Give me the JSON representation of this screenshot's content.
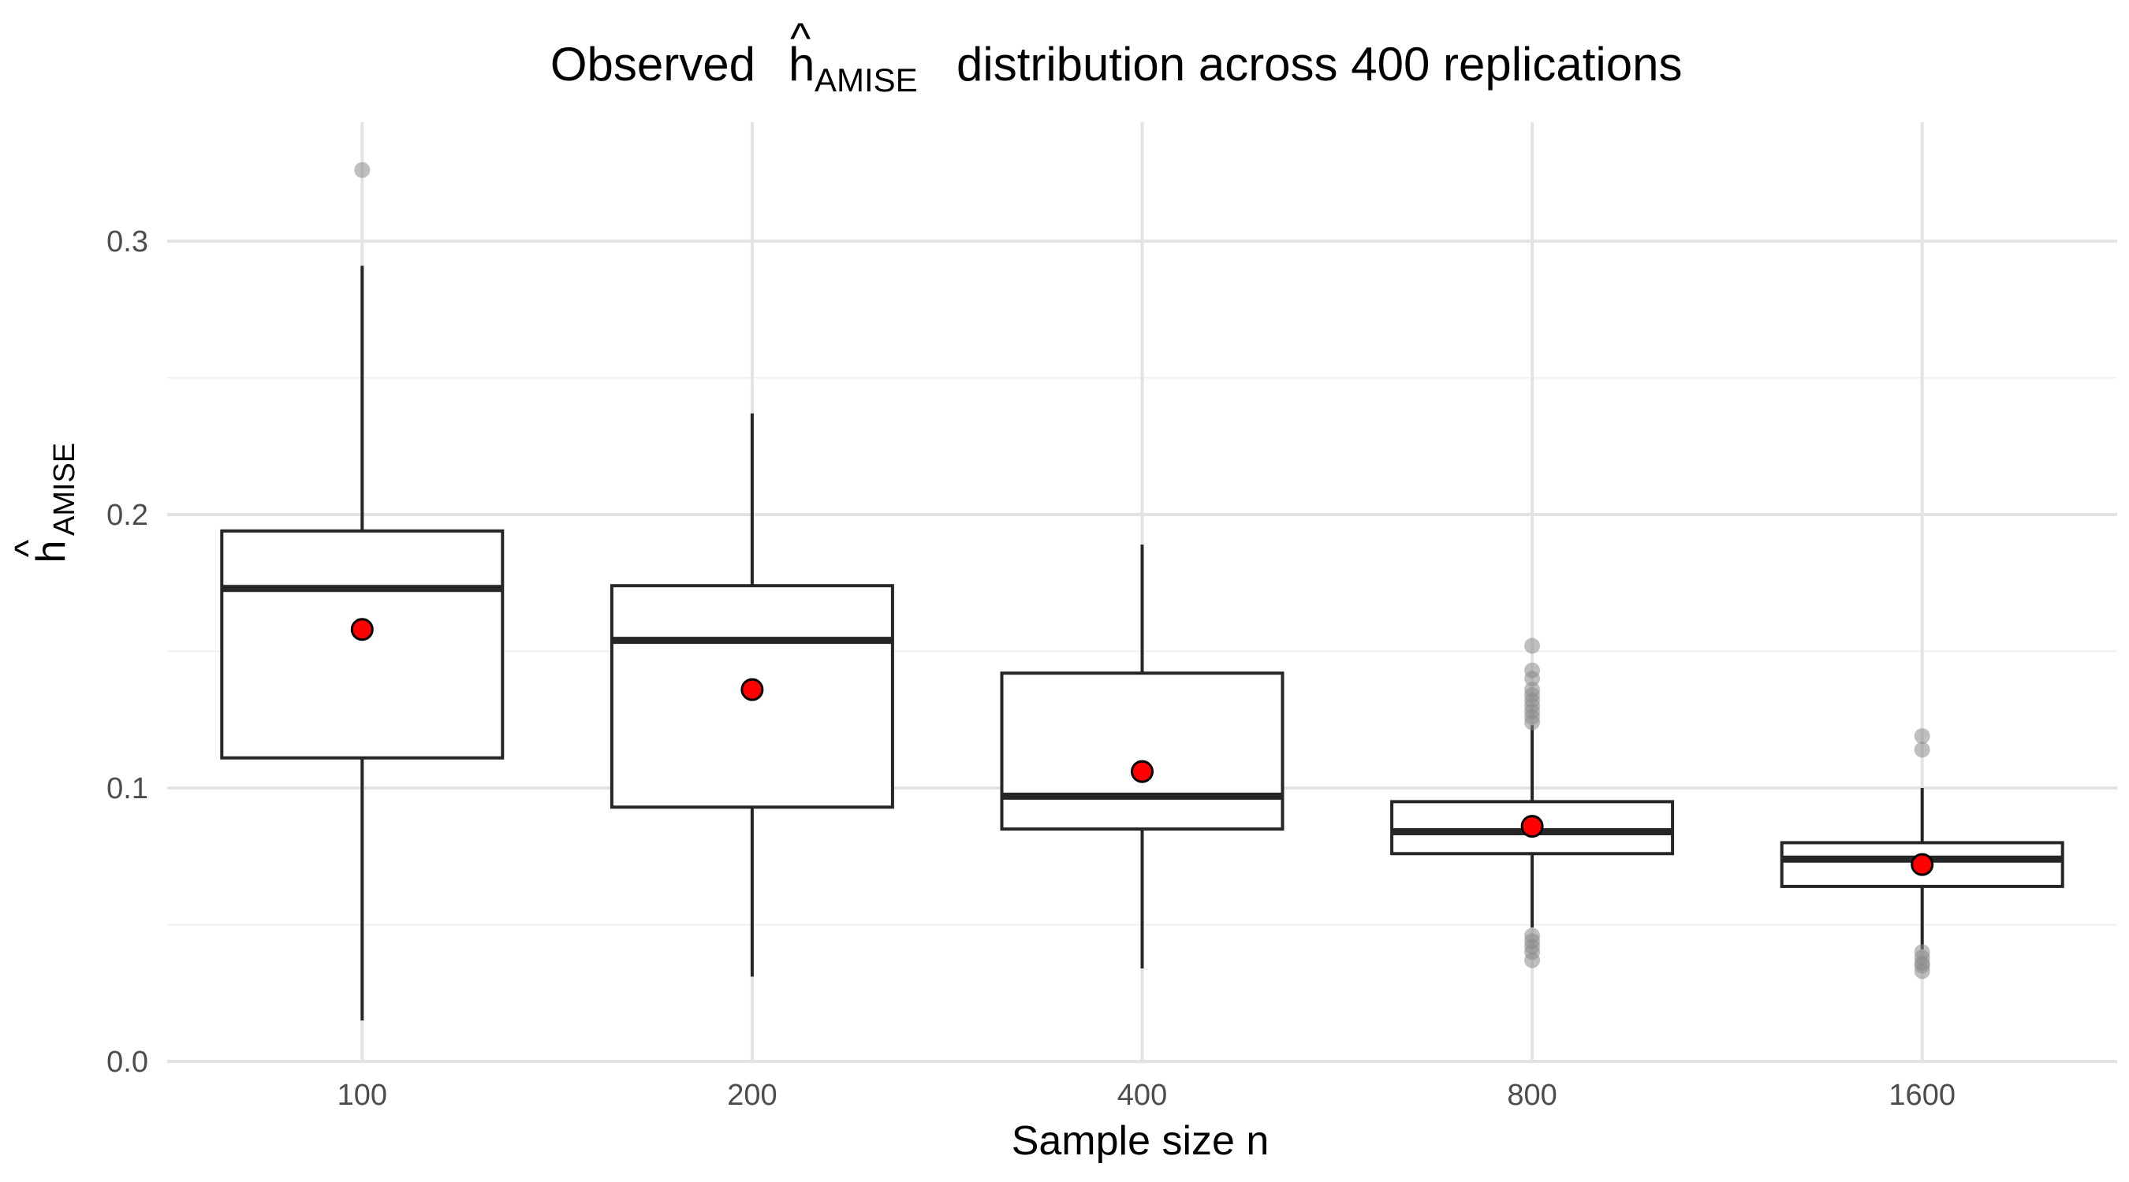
{
  "chart_data": {
    "type": "box",
    "title": {
      "prefix": "Observed",
      "symbol": "h",
      "hat": "^",
      "subscript": "AMISE",
      "suffix": "distribution across 400 replications"
    },
    "xlabel": "Sample size n",
    "ylabel": {
      "symbol": "h",
      "hat": "^",
      "subscript": "AMISE"
    },
    "ylim": [
      0,
      0.34
    ],
    "yticks": [
      {
        "value": 0.0,
        "label": "0.0"
      },
      {
        "value": 0.1,
        "label": "0.1"
      },
      {
        "value": 0.2,
        "label": "0.2"
      },
      {
        "value": 0.3,
        "label": "0.3"
      }
    ],
    "yminor": [
      0.05,
      0.15,
      0.25
    ],
    "grid": true,
    "colors": {
      "box_stroke": "#262626",
      "box_fill": "#ffffff",
      "mean_fill": "#ff0000",
      "mean_stroke": "#000000",
      "outlier": "#8a8a8a",
      "grid": "#e3e3e3"
    },
    "categories": [
      "100",
      "200",
      "400",
      "800",
      "1600"
    ],
    "boxes": [
      {
        "category": "100",
        "whisker_low": 0.015,
        "q1": 0.111,
        "median": 0.173,
        "q3": 0.194,
        "whisker_high": 0.291,
        "mean": 0.158,
        "outliers": [
          0.326
        ]
      },
      {
        "category": "200",
        "whisker_low": 0.031,
        "q1": 0.093,
        "median": 0.154,
        "q3": 0.174,
        "whisker_high": 0.237,
        "mean": 0.136,
        "outliers": []
      },
      {
        "category": "400",
        "whisker_low": 0.034,
        "q1": 0.085,
        "median": 0.097,
        "q3": 0.142,
        "whisker_high": 0.189,
        "mean": 0.106,
        "outliers": []
      },
      {
        "category": "800",
        "whisker_low": 0.049,
        "q1": 0.076,
        "median": 0.084,
        "q3": 0.095,
        "whisker_high": 0.123,
        "mean": 0.086,
        "outliers": [
          0.152,
          0.143,
          0.14,
          0.136,
          0.134,
          0.132,
          0.13,
          0.128,
          0.126,
          0.124,
          0.046,
          0.044,
          0.042,
          0.04,
          0.037
        ]
      },
      {
        "category": "1600",
        "whisker_low": 0.041,
        "q1": 0.064,
        "median": 0.074,
        "q3": 0.08,
        "whisker_high": 0.1,
        "mean": 0.072,
        "outliers": [
          0.119,
          0.114,
          0.04,
          0.038,
          0.036,
          0.035,
          0.033
        ]
      }
    ]
  }
}
